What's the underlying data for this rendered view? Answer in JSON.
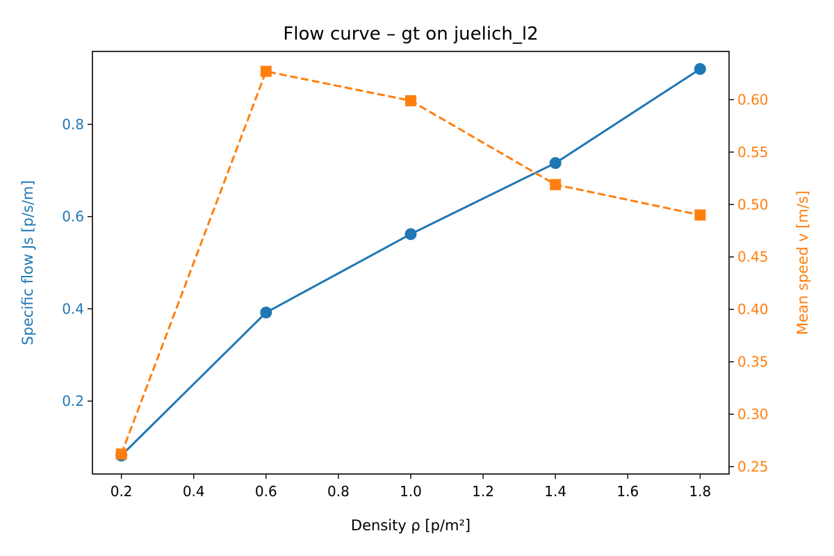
{
  "chart_data": {
    "type": "line",
    "title": "Flow curve – gt on juelich_l2",
    "xlabel": "Density ρ [p/m²]",
    "ylabel_left": "Specific flow Js [p/s/m]",
    "ylabel_right": "Mean speed v [m/s]",
    "x": [
      0.2,
      0.6,
      1.0,
      1.4,
      1.8
    ],
    "x_ticks": [
      "0.2",
      "0.4",
      "0.6",
      "0.8",
      "1.0",
      "1.2",
      "1.4",
      "1.6",
      "1.8"
    ],
    "y_left_ticks": [
      "0.2",
      "0.4",
      "0.6",
      "0.8"
    ],
    "y_right_ticks": [
      "0.25",
      "0.30",
      "0.35",
      "0.40",
      "0.45",
      "0.50",
      "0.55",
      "0.60"
    ],
    "xlim": [
      0.12,
      1.88
    ],
    "ylim_left": [
      0.042,
      0.958
    ],
    "ylim_right": [
      0.243,
      0.646
    ],
    "grid": false,
    "series": [
      {
        "axis": "left",
        "values": [
          0.082,
          0.392,
          0.562,
          0.716,
          0.92
        ],
        "color": "#1f77b4",
        "line_style": "solid",
        "marker": "circle"
      },
      {
        "axis": "right",
        "values": [
          0.262,
          0.627,
          0.599,
          0.519,
          0.49
        ],
        "color": "#ff7f0e",
        "line_style": "dashed",
        "marker": "square"
      }
    ],
    "colors": {
      "left_axis": "#1f77b4",
      "right_axis": "#ff7f0e",
      "frame": "#000000"
    }
  }
}
